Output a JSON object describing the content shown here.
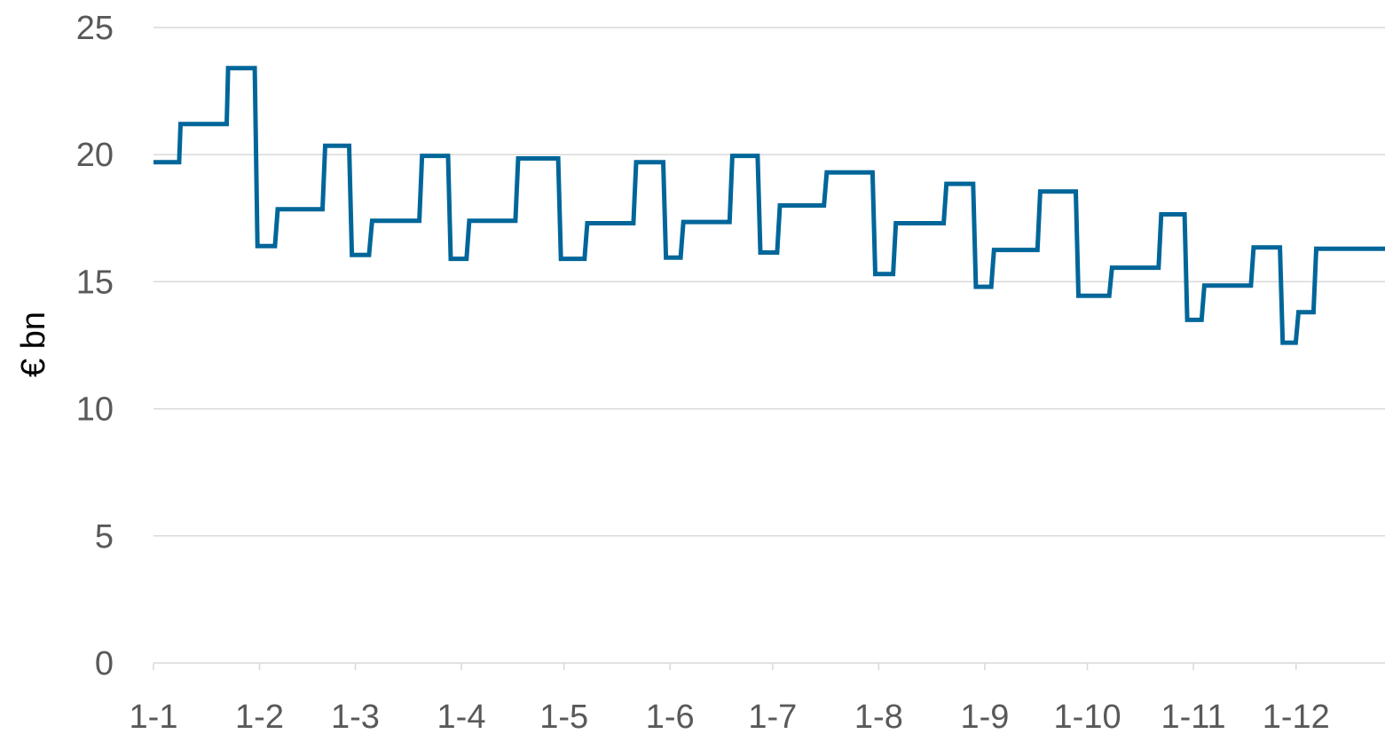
{
  "chart_data": {
    "type": "line",
    "title": "",
    "xlabel": "",
    "ylabel": "€ bn",
    "ylim": [
      0,
      25
    ],
    "yticks": [
      0,
      5,
      10,
      15,
      20,
      25
    ],
    "xlim": [
      0,
      360
    ],
    "x_ticks": [
      {
        "label": "1-1",
        "day": 0
      },
      {
        "label": "1-2",
        "day": 31
      },
      {
        "label": "1-3",
        "day": 59
      },
      {
        "label": "1-4",
        "day": 90
      },
      {
        "label": "1-5",
        "day": 120
      },
      {
        "label": "1-6",
        "day": 151
      },
      {
        "label": "1-7",
        "day": 181
      },
      {
        "label": "1-8",
        "day": 212
      },
      {
        "label": "1-9",
        "day": 243
      },
      {
        "label": "1-10",
        "day": 273
      },
      {
        "label": "1-11",
        "day": 304
      },
      {
        "label": "1-12",
        "day": 334
      }
    ],
    "grid": true,
    "legend": "none",
    "series": [
      {
        "color": "#006699",
        "points": [
          [
            0,
            19.7
          ],
          [
            7.5,
            19.7
          ],
          [
            7.9,
            21.2
          ],
          [
            21.4,
            21.2
          ],
          [
            21.8,
            23.4
          ],
          [
            29.6,
            23.4
          ],
          [
            30.4,
            16.4
          ],
          [
            35.5,
            16.4
          ],
          [
            36.3,
            17.85
          ],
          [
            49.4,
            17.85
          ],
          [
            50.2,
            20.35
          ],
          [
            57.2,
            20.35
          ],
          [
            58.0,
            16.05
          ],
          [
            63.0,
            16.05
          ],
          [
            63.9,
            17.4
          ],
          [
            77.7,
            17.4
          ],
          [
            78.5,
            19.95
          ],
          [
            86.1,
            19.95
          ],
          [
            86.9,
            15.9
          ],
          [
            91.5,
            15.9
          ],
          [
            92.3,
            17.4
          ],
          [
            105.8,
            17.4
          ],
          [
            106.6,
            19.85
          ],
          [
            118.3,
            19.85
          ],
          [
            119.1,
            15.9
          ],
          [
            126.0,
            15.9
          ],
          [
            126.8,
            17.3
          ],
          [
            140.3,
            17.3
          ],
          [
            141.1,
            19.7
          ],
          [
            149.0,
            19.7
          ],
          [
            149.8,
            15.95
          ],
          [
            154.1,
            15.95
          ],
          [
            154.9,
            17.35
          ],
          [
            168.4,
            17.35
          ],
          [
            169.2,
            19.95
          ],
          [
            176.6,
            19.95
          ],
          [
            177.4,
            16.15
          ],
          [
            182.3,
            16.15
          ],
          [
            183.1,
            18.0
          ],
          [
            196.0,
            18.0
          ],
          [
            196.8,
            19.3
          ],
          [
            210.2,
            19.3
          ],
          [
            211.0,
            15.3
          ],
          [
            216.2,
            15.3
          ],
          [
            217.0,
            17.3
          ],
          [
            231.0,
            17.3
          ],
          [
            231.8,
            18.85
          ],
          [
            239.6,
            18.85
          ],
          [
            240.4,
            14.8
          ],
          [
            244.9,
            14.8
          ],
          [
            245.7,
            16.25
          ],
          [
            258.4,
            16.25
          ],
          [
            259.2,
            18.55
          ],
          [
            269.6,
            18.55
          ],
          [
            270.4,
            14.45
          ],
          [
            279.4,
            14.45
          ],
          [
            280.2,
            15.55
          ],
          [
            293.8,
            15.55
          ],
          [
            294.6,
            17.65
          ],
          [
            301.4,
            17.65
          ],
          [
            302.2,
            13.5
          ],
          [
            306.4,
            13.5
          ],
          [
            307.2,
            14.85
          ],
          [
            320.8,
            14.85
          ],
          [
            321.6,
            16.35
          ],
          [
            329.3,
            16.35
          ],
          [
            330.1,
            12.6
          ],
          [
            333.9,
            12.6
          ],
          [
            334.7,
            13.8
          ],
          [
            339.1,
            13.8
          ],
          [
            339.9,
            16.3
          ],
          [
            360,
            16.3
          ]
        ]
      }
    ]
  }
}
